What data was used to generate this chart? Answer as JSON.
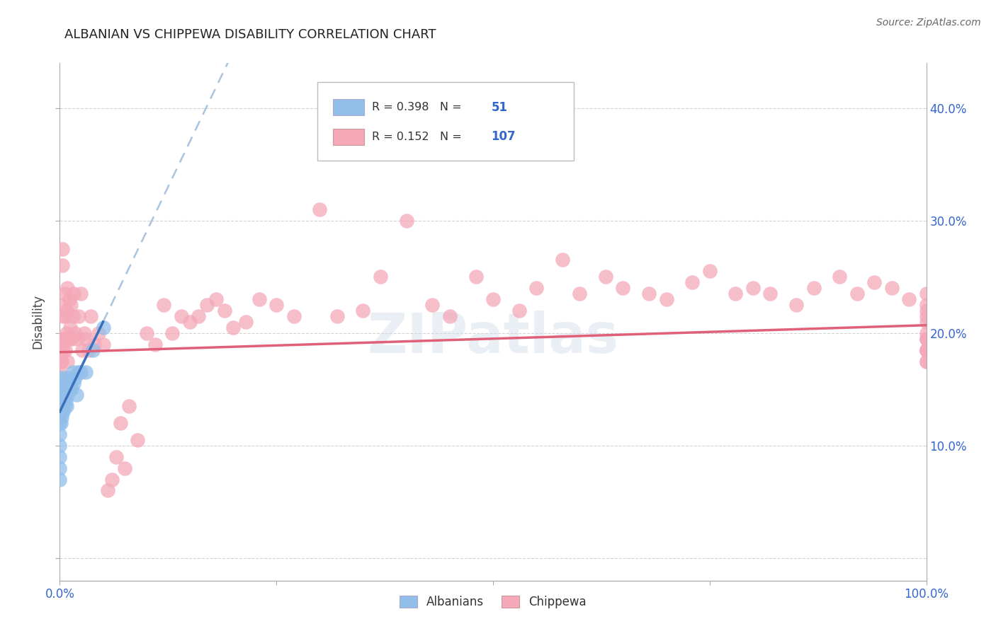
{
  "title": "ALBANIAN VS CHIPPEWA DISABILITY CORRELATION CHART",
  "source": "Source: ZipAtlas.com",
  "ylabel": "Disability",
  "xlim": [
    0.0,
    1.0
  ],
  "ylim": [
    -0.02,
    0.44
  ],
  "right_ytick_positions": [
    0.1,
    0.2,
    0.3,
    0.4
  ],
  "right_ytick_labels": [
    "10.0%",
    "20.0%",
    "30.0%",
    "40.0%"
  ],
  "xtick_positions": [
    0.0,
    0.25,
    0.5,
    0.75,
    1.0
  ],
  "xtick_labels": [
    "0.0%",
    "",
    "",
    "",
    "100.0%"
  ],
  "legend_r_albanian": "0.398",
  "legend_n_albanian": "51",
  "legend_r_chippewa": "0.152",
  "legend_n_chippewa": "107",
  "albanian_color": "#92bfea",
  "chippewa_color": "#f4a8b8",
  "trendline_albanian_color": "#3b6fba",
  "trendline_chippewa_color": "#e0607a",
  "trendline_dashed_color": "#a8c4de",
  "watermark": "ZIPatlas",
  "albanian_x": [
    0.0,
    0.0,
    0.0,
    0.0,
    0.0,
    0.0,
    0.0,
    0.0,
    0.0,
    0.0,
    0.0,
    0.0,
    0.0,
    0.001,
    0.001,
    0.001,
    0.001,
    0.001,
    0.002,
    0.002,
    0.002,
    0.002,
    0.003,
    0.003,
    0.003,
    0.004,
    0.004,
    0.004,
    0.005,
    0.005,
    0.006,
    0.006,
    0.007,
    0.007,
    0.008,
    0.008,
    0.009,
    0.01,
    0.011,
    0.012,
    0.013,
    0.014,
    0.015,
    0.016,
    0.018,
    0.019,
    0.021,
    0.024,
    0.03,
    0.038,
    0.05
  ],
  "albanian_y": [
    0.155,
    0.15,
    0.145,
    0.14,
    0.135,
    0.13,
    0.125,
    0.12,
    0.11,
    0.1,
    0.09,
    0.08,
    0.07,
    0.16,
    0.15,
    0.14,
    0.13,
    0.12,
    0.155,
    0.145,
    0.135,
    0.125,
    0.15,
    0.14,
    0.13,
    0.155,
    0.145,
    0.13,
    0.155,
    0.14,
    0.15,
    0.135,
    0.16,
    0.14,
    0.155,
    0.135,
    0.145,
    0.155,
    0.15,
    0.155,
    0.16,
    0.15,
    0.165,
    0.155,
    0.16,
    0.145,
    0.165,
    0.165,
    0.165,
    0.185,
    0.205
  ],
  "chippewa_x": [
    0.0,
    0.0,
    0.0,
    0.001,
    0.001,
    0.002,
    0.002,
    0.003,
    0.003,
    0.004,
    0.004,
    0.005,
    0.005,
    0.006,
    0.006,
    0.007,
    0.007,
    0.008,
    0.008,
    0.009,
    0.009,
    0.01,
    0.011,
    0.012,
    0.013,
    0.014,
    0.015,
    0.016,
    0.018,
    0.02,
    0.022,
    0.024,
    0.026,
    0.028,
    0.03,
    0.033,
    0.036,
    0.04,
    0.045,
    0.05,
    0.055,
    0.06,
    0.065,
    0.07,
    0.075,
    0.08,
    0.09,
    0.1,
    0.11,
    0.12,
    0.13,
    0.14,
    0.15,
    0.16,
    0.17,
    0.18,
    0.19,
    0.2,
    0.215,
    0.23,
    0.25,
    0.27,
    0.3,
    0.32,
    0.35,
    0.37,
    0.4,
    0.43,
    0.45,
    0.48,
    0.5,
    0.53,
    0.55,
    0.58,
    0.6,
    0.63,
    0.65,
    0.68,
    0.7,
    0.73,
    0.75,
    0.78,
    0.8,
    0.82,
    0.85,
    0.87,
    0.9,
    0.92,
    0.94,
    0.96,
    0.98,
    1.0,
    1.0,
    1.0,
    1.0,
    1.0,
    1.0,
    1.0,
    1.0,
    1.0,
    1.0,
    1.0,
    1.0,
    1.0,
    1.0,
    1.0
  ],
  "chippewa_y": [
    0.175,
    0.165,
    0.155,
    0.195,
    0.175,
    0.175,
    0.19,
    0.26,
    0.275,
    0.185,
    0.215,
    0.195,
    0.225,
    0.185,
    0.235,
    0.215,
    0.195,
    0.2,
    0.22,
    0.175,
    0.24,
    0.195,
    0.23,
    0.205,
    0.225,
    0.195,
    0.215,
    0.235,
    0.2,
    0.195,
    0.215,
    0.235,
    0.185,
    0.2,
    0.195,
    0.185,
    0.215,
    0.19,
    0.2,
    0.19,
    0.06,
    0.07,
    0.09,
    0.12,
    0.08,
    0.135,
    0.105,
    0.2,
    0.19,
    0.225,
    0.2,
    0.215,
    0.21,
    0.215,
    0.225,
    0.23,
    0.22,
    0.205,
    0.21,
    0.23,
    0.225,
    0.215,
    0.31,
    0.215,
    0.22,
    0.25,
    0.3,
    0.225,
    0.215,
    0.25,
    0.23,
    0.22,
    0.24,
    0.265,
    0.235,
    0.25,
    0.24,
    0.235,
    0.23,
    0.245,
    0.255,
    0.235,
    0.24,
    0.235,
    0.225,
    0.24,
    0.25,
    0.235,
    0.245,
    0.24,
    0.23,
    0.195,
    0.215,
    0.225,
    0.235,
    0.185,
    0.22,
    0.21,
    0.175,
    0.195,
    0.185,
    0.175,
    0.195,
    0.185,
    0.2,
    0.185
  ],
  "trendline_albanian_x0": 0.0,
  "trendline_albanian_y0": 0.13,
  "trendline_albanian_x1": 0.05,
  "trendline_albanian_y1": 0.21,
  "trendline_albanian_dash_x0": 0.05,
  "trendline_albanian_dash_x1": 1.0,
  "trendline_chippewa_x0": 0.0,
  "trendline_chippewa_y0": 0.183,
  "trendline_chippewa_x1": 1.0,
  "trendline_chippewa_y1": 0.207
}
